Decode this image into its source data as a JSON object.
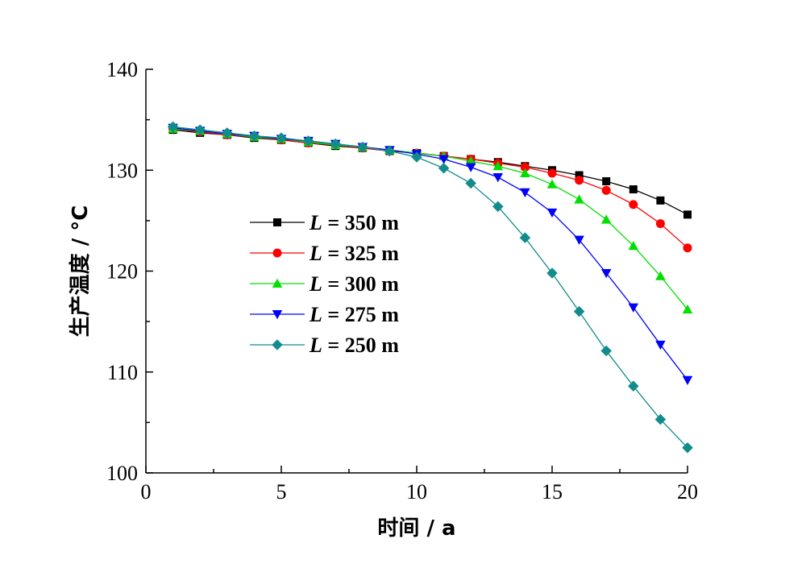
{
  "chart_data": {
    "type": "line",
    "xlabel": "时间 / a",
    "ylabel": "生产温度 / °C",
    "xlim": [
      0,
      20
    ],
    "ylim": [
      100,
      140
    ],
    "xticks": [
      0,
      5,
      10,
      15,
      20
    ],
    "yticks": [
      100,
      110,
      120,
      130,
      140
    ],
    "grid": false,
    "legend_position": "center-left",
    "x": [
      1,
      2,
      3,
      4,
      5,
      6,
      7,
      8,
      9,
      10,
      11,
      12,
      13,
      14,
      15,
      16,
      17,
      18,
      19,
      20
    ],
    "series": [
      {
        "name": "L = 350 m",
        "name_italic": "L",
        "name_rest": " = 350 m",
        "color": "#000000",
        "marker": "square",
        "values": [
          134.0,
          133.7,
          133.5,
          133.2,
          133.0,
          132.7,
          132.4,
          132.2,
          131.9,
          131.7,
          131.4,
          131.1,
          130.8,
          130.4,
          130.0,
          129.5,
          128.9,
          128.1,
          127.0,
          125.6
        ]
      },
      {
        "name": "L = 325 m",
        "name_italic": "L",
        "name_rest": " = 325 m",
        "color": "#ff0000",
        "marker": "circle",
        "values": [
          134.1,
          133.8,
          133.5,
          133.3,
          133.0,
          132.7,
          132.5,
          132.2,
          131.9,
          131.7,
          131.4,
          131.1,
          130.7,
          130.3,
          129.7,
          129.0,
          128.0,
          126.6,
          124.7,
          122.3
        ]
      },
      {
        "name": "L = 300 m",
        "name_italic": "L",
        "name_rest": " = 300 m",
        "color": "#00e000",
        "marker": "triangle-up",
        "values": [
          134.1,
          133.9,
          133.6,
          133.3,
          133.1,
          132.8,
          132.5,
          132.3,
          132.0,
          131.7,
          131.4,
          130.9,
          130.4,
          129.7,
          128.6,
          127.1,
          125.1,
          122.5,
          119.5,
          116.2
        ]
      },
      {
        "name": "L = 275 m",
        "name_italic": "L",
        "name_rest": " = 275 m",
        "color": "#0000ff",
        "marker": "triangle-down",
        "values": [
          134.2,
          133.9,
          133.6,
          133.4,
          133.1,
          132.9,
          132.6,
          132.3,
          132.0,
          131.6,
          131.1,
          130.3,
          129.3,
          127.8,
          125.8,
          123.1,
          119.8,
          116.4,
          112.7,
          109.2
        ]
      },
      {
        "name": "L = 250 m",
        "name_italic": "L",
        "name_rest": " = 250 m",
        "color": "#118c8c",
        "marker": "diamond",
        "values": [
          134.3,
          134.0,
          133.7,
          133.4,
          133.2,
          132.9,
          132.6,
          132.3,
          131.9,
          131.3,
          130.2,
          128.7,
          126.4,
          123.3,
          119.8,
          116.0,
          112.1,
          108.6,
          105.3,
          102.5
        ]
      }
    ]
  }
}
